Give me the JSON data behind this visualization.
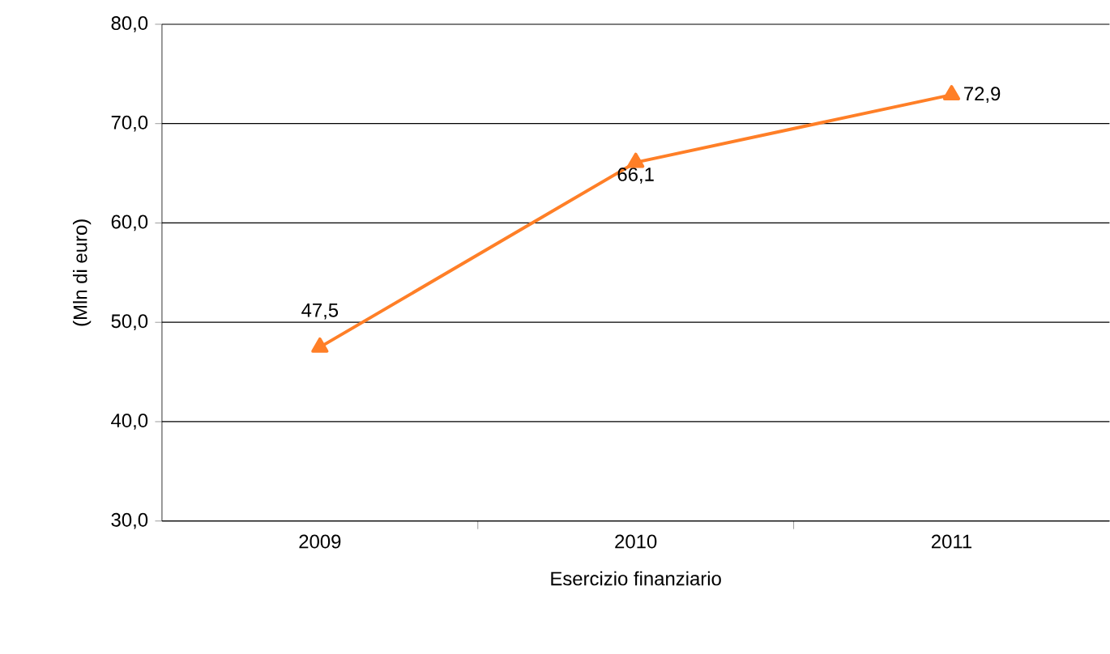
{
  "chart_data": {
    "type": "line",
    "xlabel": "Esercizio finanziario",
    "ylabel": "(Mln di euro)",
    "categories": [
      "2009",
      "2010",
      "2011"
    ],
    "series": [
      {
        "color": "#ff7f27",
        "values": [
          47.5,
          66.1,
          72.9
        ],
        "value_labels": [
          "47,5",
          "66,1",
          "72,9"
        ]
      }
    ],
    "ylim": [
      30,
      80
    ],
    "yticks": [
      {
        "value": 30,
        "label": "30,0"
      },
      {
        "value": 40,
        "label": "40,0"
      },
      {
        "value": 50,
        "label": "50,0"
      },
      {
        "value": 60,
        "label": "60,0"
      },
      {
        "value": 70,
        "label": "70,0"
      },
      {
        "value": 80,
        "label": "80,0"
      }
    ],
    "grid": "y",
    "marker": "triangle",
    "line_style": "solid"
  }
}
